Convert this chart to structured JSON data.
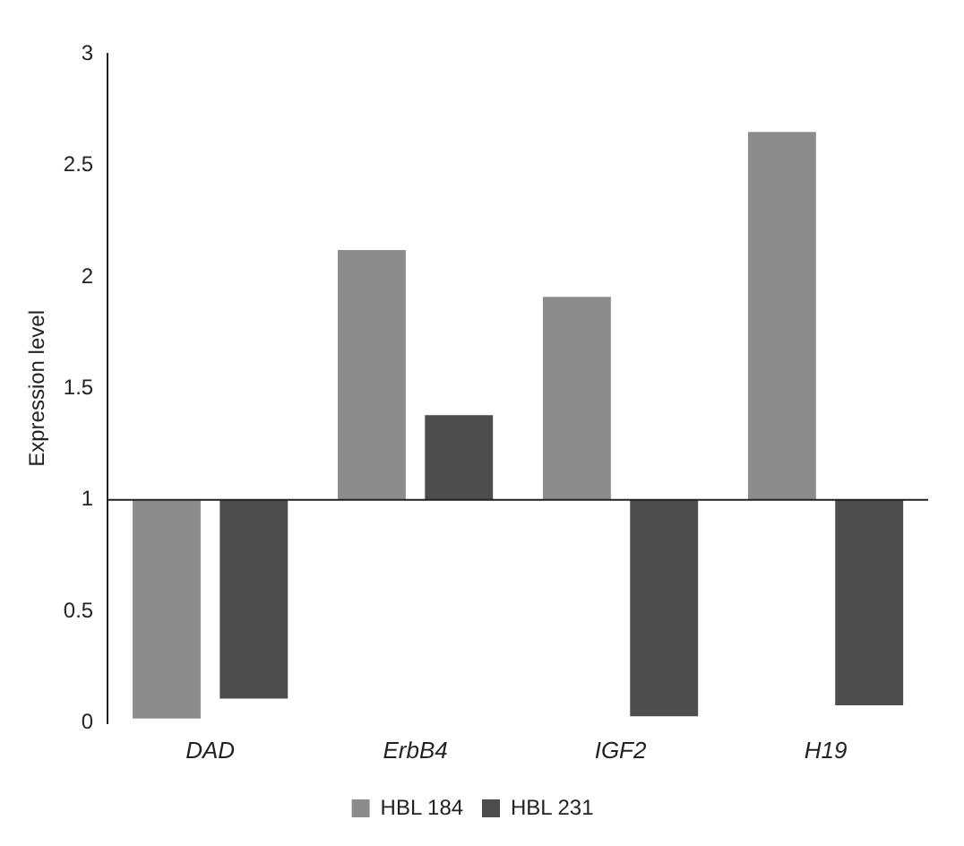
{
  "chart_data": {
    "type": "bar",
    "ylabel": "Expression level",
    "categories": [
      "DAD",
      "ErbB4",
      "IGF2",
      "H19"
    ],
    "series": [
      {
        "name": "HBL 184",
        "color": "#8c8c8c",
        "base": [
          1,
          1,
          1,
          1
        ],
        "values": [
          -0.98,
          1.12,
          0.91,
          1.65
        ]
      },
      {
        "name": "HBL 231",
        "color": "#4d4d4d",
        "base": [
          1,
          1,
          1,
          1
        ],
        "values": [
          -0.89,
          0.38,
          -0.97,
          -0.92
        ]
      }
    ],
    "ylim": [
      0,
      3
    ],
    "yticks": [
      0,
      0.5,
      1,
      1.5,
      2,
      2.5,
      3
    ],
    "grid": false,
    "ref_lines": [
      {
        "axis": "y",
        "value": 1,
        "color": "#222222"
      }
    ],
    "legend": "bottom"
  }
}
